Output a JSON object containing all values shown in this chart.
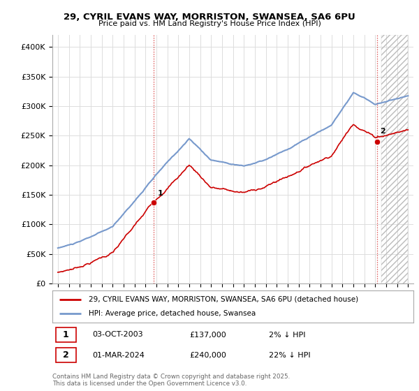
{
  "title": "29, CYRIL EVANS WAY, MORRISTON, SWANSEA, SA6 6PU",
  "subtitle": "Price paid vs. HM Land Registry's House Price Index (HPI)",
  "ylabel_ticks": [
    0,
    50000,
    100000,
    150000,
    200000,
    250000,
    300000,
    350000,
    400000
  ],
  "ylabel_labels": [
    "£0",
    "£50K",
    "£100K",
    "£150K",
    "£200K",
    "£250K",
    "£300K",
    "£350K",
    "£400K"
  ],
  "xlim": [
    1994.5,
    2027.5
  ],
  "ylim": [
    0,
    420000
  ],
  "point1": {
    "year": 2003.75,
    "price": 137000,
    "label": "1",
    "date": "03-OCT-2003",
    "amount": "£137,000",
    "pct": "2% ↓ HPI"
  },
  "point2": {
    "year": 2024.17,
    "price": 240000,
    "label": "2",
    "date": "01-MAR-2024",
    "amount": "£240,000",
    "pct": "22% ↓ HPI"
  },
  "line1_color": "#cc0000",
  "line2_color": "#7799cc",
  "marker_color": "#cc0000",
  "grid_color": "#dddddd",
  "bg_color": "#ffffff",
  "legend_line1": "29, CYRIL EVANS WAY, MORRISTON, SWANSEA, SA6 6PU (detached house)",
  "legend_line2": "HPI: Average price, detached house, Swansea",
  "copyright": "Contains HM Land Registry data © Crown copyright and database right 2025.\nThis data is licensed under the Open Government Licence v3.0.",
  "vline_color": "#cc0000",
  "hatch_color": "#cccccc"
}
